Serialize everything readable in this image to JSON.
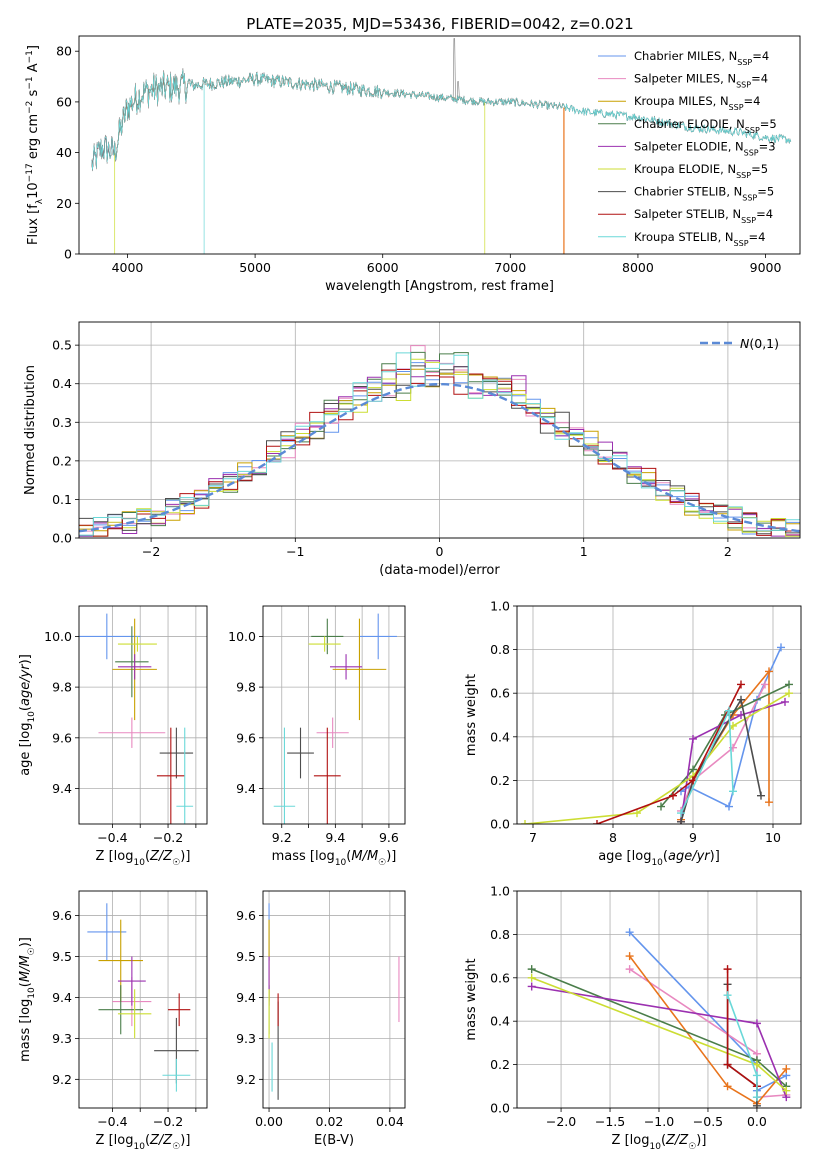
{
  "figure": {
    "title": "PLATE=2035, MJD=53436, FIBERID=0042, z=0.021"
  },
  "series_colors": {
    "Chabrier MILES": "#6495ed",
    "Salpeter MILES": "#e889c0",
    "Kroupa MILES": "#c8a000",
    "Chabrier ELODIE": "#4a7d4a",
    "Salpeter ELODIE": "#9b30b0",
    "Kroupa ELODIE": "#ccdd33",
    "Chabrier STELIB": "#4d4d4d",
    "Salpeter STELIB": "#b01010",
    "Kroupa STELIB": "#6ad8d8",
    "Salpeter STELIB (weights)": "#e8741c"
  },
  "chart_data": [
    {
      "type": "line",
      "name": "spectrum",
      "xlabel": "wavelength [Angstrom, rest frame]",
      "ylabel": "Flux [f_λ10^-17 erg cm^-2 s^-1 A^-1]",
      "xlim": [
        3620,
        9270
      ],
      "ylim": [
        0,
        86
      ],
      "xticks": [
        4000,
        5000,
        6000,
        7000,
        8000,
        9000
      ],
      "yticks": [
        0,
        20,
        40,
        60,
        80
      ],
      "grid": false,
      "legend_placement": "top-right",
      "legend": [
        {
          "model": "Chabrier MILES",
          "nssp": "4"
        },
        {
          "model": "Salpeter MILES",
          "nssp": "4"
        },
        {
          "model": "Kroupa MILES",
          "nssp": "4"
        },
        {
          "model": "Chabrier ELODIE",
          "nssp": "5"
        },
        {
          "model": "Salpeter ELODIE",
          "nssp": "3"
        },
        {
          "model": "Kroupa ELODIE",
          "nssp": "5"
        },
        {
          "model": "Chabrier STELIB",
          "nssp": "5"
        },
        {
          "model": "Salpeter STELIB",
          "nssp": "4"
        },
        {
          "model": "Kroupa STELIB",
          "nssp": "4"
        }
      ],
      "continuum": [
        [
          3720,
          35
        ],
        [
          3800,
          42
        ],
        [
          3900,
          40
        ],
        [
          3950,
          50
        ],
        [
          4000,
          58
        ],
        [
          4100,
          63
        ],
        [
          4200,
          65
        ],
        [
          4400,
          66
        ],
        [
          4600,
          67
        ],
        [
          4800,
          68
        ],
        [
          5000,
          69
        ],
        [
          5200,
          68
        ],
        [
          5400,
          67
        ],
        [
          5600,
          66
        ],
        [
          5800,
          65
        ],
        [
          6000,
          64
        ],
        [
          6200,
          63
        ],
        [
          6400,
          62
        ],
        [
          6600,
          61
        ],
        [
          6800,
          60
        ],
        [
          7000,
          60
        ],
        [
          7200,
          59
        ],
        [
          7400,
          58
        ],
        [
          7600,
          56
        ],
        [
          7800,
          55
        ],
        [
          8000,
          54
        ],
        [
          8200,
          52
        ],
        [
          8400,
          50
        ],
        [
          8600,
          49
        ],
        [
          8800,
          48
        ],
        [
          9000,
          46
        ],
        [
          9200,
          45
        ]
      ],
      "drops": [
        {
          "series": "Kroupa ELODIE",
          "x": 3900
        },
        {
          "series": "Kroupa STELIB",
          "x": 4600
        },
        {
          "series": "Kroupa ELODIE",
          "x": 6800
        },
        {
          "series": "Salpeter STELIB",
          "x": 7420
        }
      ],
      "emission_lines": [
        {
          "x": 6563,
          "y": 85
        },
        {
          "x": 6590,
          "y": 68
        }
      ]
    },
    {
      "type": "histogram",
      "name": "residuals",
      "xlabel": "(data-model)/error",
      "ylabel": "Normed distribution",
      "xlim": [
        -2.5,
        2.5
      ],
      "ylim": [
        0,
        0.56
      ],
      "xticks": [
        -2,
        -1,
        0,
        1,
        2
      ],
      "yticks": [
        0.0,
        0.1,
        0.2,
        0.3,
        0.4,
        0.5
      ],
      "grid": true,
      "legend_placement": "top-right",
      "reference_label": "N(0,1)",
      "bin_width": 0.1,
      "bin_start": -2.5
    },
    {
      "type": "scatter",
      "name": "age-vs-Z",
      "xlabel": "Z [log10(Z/Z☉)]",
      "ylabel": "age  [log10(age/yr)]",
      "xlim": [
        -0.52,
        -0.06
      ],
      "ylim": [
        9.26,
        10.12
      ],
      "xticks": [
        -0.4,
        -0.3,
        -0.2,
        -0.1
      ],
      "xticklabels": [
        "−0.4",
        "",
        "−0.2",
        ""
      ],
      "yticks": [
        9.4,
        9.6,
        9.8,
        10.0
      ],
      "grid": true,
      "points": [
        {
          "series": "Chabrier MILES",
          "x": -0.42,
          "xerr": 0.12,
          "y": 10.0,
          "yerr": 0.09
        },
        {
          "series": "Salpeter MILES",
          "x": -0.33,
          "xerr": 0.12,
          "y": 9.62,
          "yerr": 0.06
        },
        {
          "series": "Kroupa MILES",
          "x": -0.32,
          "xerr": 0.08,
          "y": 9.87,
          "yerr": 0.2
        },
        {
          "series": "Chabrier ELODIE",
          "x": -0.33,
          "xerr": 0.06,
          "y": 9.9,
          "yerr": 0.14
        },
        {
          "series": "Salpeter ELODIE",
          "x": -0.32,
          "xerr": 0.06,
          "y": 9.88,
          "yerr": 0.05
        },
        {
          "series": "Kroupa ELODIE",
          "x": -0.31,
          "xerr": 0.07,
          "y": 9.97,
          "yerr": 0.03
        },
        {
          "series": "Chabrier STELIB",
          "x": -0.17,
          "xerr": 0.06,
          "y": 9.54,
          "yerr": 0.1
        },
        {
          "series": "Salpeter STELIB",
          "x": -0.19,
          "xerr": 0.05,
          "y": 9.45,
          "yerr": 0.19
        },
        {
          "series": "Kroupa STELIB",
          "x": -0.14,
          "xerr": 0.03,
          "y": 9.33,
          "yerr": 0.31
        }
      ]
    },
    {
      "type": "scatter",
      "name": "age-vs-mass",
      "xlabel": "mass [log10(M/M☉)]",
      "ylabel": "",
      "xlim": [
        9.13,
        9.66
      ],
      "ylim": [
        9.26,
        10.12
      ],
      "xticks": [
        9.2,
        9.3,
        9.4,
        9.5,
        9.6
      ],
      "xticklabels": [
        "9.2",
        "",
        "9.4",
        "",
        "9.6"
      ],
      "yticks": [
        9.4,
        9.6,
        9.8,
        10.0
      ],
      "grid": true,
      "points": [
        {
          "series": "Chabrier MILES",
          "x": 9.56,
          "xerr": 0.07,
          "y": 10.0,
          "yerr": 0.09
        },
        {
          "series": "Salpeter MILES",
          "x": 9.39,
          "xerr": 0.06,
          "y": 9.62,
          "yerr": 0.06
        },
        {
          "series": "Kroupa MILES",
          "x": 9.49,
          "xerr": 0.1,
          "y": 9.87,
          "yerr": 0.2
        },
        {
          "series": "Chabrier ELODIE",
          "x": 9.37,
          "xerr": 0.06,
          "y": 10.0,
          "yerr": 0.07
        },
        {
          "series": "Salpeter ELODIE",
          "x": 9.44,
          "xerr": 0.06,
          "y": 9.88,
          "yerr": 0.05
        },
        {
          "series": "Kroupa ELODIE",
          "x": 9.36,
          "xerr": 0.06,
          "y": 9.97,
          "yerr": 0.03
        },
        {
          "series": "Chabrier STELIB",
          "x": 9.27,
          "xerr": 0.05,
          "y": 9.54,
          "yerr": 0.1
        },
        {
          "series": "Salpeter STELIB",
          "x": 9.37,
          "xerr": 0.05,
          "y": 9.45,
          "yerr": 0.19
        },
        {
          "series": "Kroupa STELIB",
          "x": 9.21,
          "xerr": 0.04,
          "y": 9.33,
          "yerr": 0.31
        }
      ]
    },
    {
      "type": "line",
      "name": "weight-vs-age",
      "xlabel": "age  [log10(age/yr)]",
      "ylabel": "mass weight",
      "xlim": [
        6.8,
        10.35
      ],
      "ylim": [
        0,
        1
      ],
      "xticks": [
        7,
        8,
        9,
        10
      ],
      "yticks": [
        0.0,
        0.2,
        0.4,
        0.6,
        0.8,
        1.0
      ],
      "grid": true,
      "series": [
        {
          "series": "Chabrier MILES",
          "points": [
            [
              8.85,
              0.15
            ],
            [
              8.95,
              0.17
            ],
            [
              9.45,
              0.08
            ],
            [
              9.8,
              0.57
            ],
            [
              10.1,
              0.81
            ]
          ]
        },
        {
          "series": "Salpeter MILES",
          "points": [
            [
              8.85,
              0.06
            ],
            [
              9.0,
              0.2
            ],
            [
              9.5,
              0.35
            ],
            [
              9.9,
              0.64
            ]
          ]
        },
        {
          "series": "Salpeter STELIB (weights)",
          "points": [
            [
              8.85,
              0.02
            ],
            [
              9.0,
              0.2
            ],
            [
              9.5,
              0.5
            ],
            [
              9.95,
              0.7
            ],
            [
              9.95,
              0.1
            ]
          ]
        },
        {
          "series": "Chabrier ELODIE",
          "points": [
            [
              8.6,
              0.08
            ],
            [
              9.0,
              0.25
            ],
            [
              9.4,
              0.5
            ],
            [
              10.2,
              0.64
            ]
          ]
        },
        {
          "series": "Salpeter ELODIE",
          "points": [
            [
              8.85,
              0.01
            ],
            [
              9.0,
              0.39
            ],
            [
              9.6,
              0.5
            ],
            [
              10.15,
              0.56
            ]
          ]
        },
        {
          "series": "Kroupa ELODIE",
          "points": [
            [
              6.9,
              0.0
            ],
            [
              8.3,
              0.05
            ],
            [
              9.0,
              0.22
            ],
            [
              9.5,
              0.45
            ],
            [
              10.2,
              0.6
            ]
          ]
        },
        {
          "series": "Chabrier STELIB",
          "points": [
            [
              8.85,
              0.01
            ],
            [
              9.0,
              0.2
            ],
            [
              9.6,
              0.57
            ],
            [
              9.85,
              0.13
            ]
          ]
        },
        {
          "series": "Salpeter STELIB",
          "points": [
            [
              7.8,
              0.0
            ],
            [
              8.75,
              0.13
            ],
            [
              9.0,
              0.2
            ],
            [
              9.6,
              0.64
            ]
          ]
        },
        {
          "series": "Kroupa STELIB",
          "points": [
            [
              8.85,
              0.05
            ],
            [
              9.45,
              0.52
            ],
            [
              9.5,
              0.15
            ]
          ]
        }
      ]
    },
    {
      "type": "scatter",
      "name": "mass-vs-Z",
      "xlabel": "Z [log10(Z/Z☉)]",
      "ylabel": "mass [log10(M/M☉)]",
      "xlim": [
        -0.52,
        -0.06
      ],
      "ylim": [
        9.13,
        9.66
      ],
      "xticks": [
        -0.4,
        -0.3,
        -0.2,
        -0.1
      ],
      "xticklabels": [
        "−0.4",
        "",
        "−0.2",
        ""
      ],
      "yticks": [
        9.2,
        9.3,
        9.4,
        9.5,
        9.6
      ],
      "grid": true,
      "points": [
        {
          "series": "Chabrier MILES",
          "x": -0.42,
          "xerr": 0.07,
          "y": 9.56,
          "yerr": 0.07
        },
        {
          "series": "Salpeter MILES",
          "x": -0.33,
          "xerr": 0.07,
          "y": 9.39,
          "yerr": 0.06
        },
        {
          "series": "Kroupa MILES",
          "x": -0.37,
          "xerr": 0.08,
          "y": 9.49,
          "yerr": 0.1
        },
        {
          "series": "Chabrier ELODIE",
          "x": -0.37,
          "xerr": 0.08,
          "y": 9.37,
          "yerr": 0.06
        },
        {
          "series": "Salpeter ELODIE",
          "x": -0.33,
          "xerr": 0.05,
          "y": 9.44,
          "yerr": 0.06
        },
        {
          "series": "Kroupa ELODIE",
          "x": -0.32,
          "xerr": 0.06,
          "y": 9.36,
          "yerr": 0.06
        },
        {
          "series": "Chabrier STELIB",
          "x": -0.17,
          "xerr": 0.08,
          "y": 9.27,
          "yerr": 0.08
        },
        {
          "series": "Salpeter STELIB",
          "x": -0.16,
          "xerr": 0.04,
          "y": 9.37,
          "yerr": 0.04
        },
        {
          "series": "Kroupa STELIB",
          "x": -0.17,
          "xerr": 0.05,
          "y": 9.21,
          "yerr": 0.04
        }
      ]
    },
    {
      "type": "scatter",
      "name": "mass-vs-EBV",
      "xlabel": "E(B-V)",
      "ylabel": "",
      "xlim": [
        -0.002,
        0.045
      ],
      "ylim": [
        9.13,
        9.66
      ],
      "xticks": [
        0.0,
        0.02,
        0.04
      ],
      "xticklabels": [
        "0.00",
        "0.02",
        "0.04"
      ],
      "yticks": [
        9.2,
        9.3,
        9.4,
        9.5,
        9.6
      ],
      "grid": true,
      "points": [
        {
          "series": "Chabrier MILES",
          "x": 0.0,
          "y": 9.56,
          "yerr": 0.07
        },
        {
          "series": "Salpeter MILES",
          "x": 0.043,
          "y": 9.42,
          "yerr": 0.08
        },
        {
          "series": "Kroupa MILES",
          "x": 0.0,
          "y": 9.49,
          "yerr": 0.1
        },
        {
          "series": "Chabrier ELODIE",
          "x": 0.0,
          "y": 9.37,
          "yerr": 0.06
        },
        {
          "series": "Salpeter ELODIE",
          "x": 0.0,
          "y": 9.44,
          "yerr": 0.06
        },
        {
          "series": "Kroupa ELODIE",
          "x": 0.0,
          "y": 9.36,
          "yerr": 0.06
        },
        {
          "series": "Chabrier STELIB",
          "x": 0.003,
          "y": 9.27,
          "yerr": 0.12
        },
        {
          "series": "Salpeter STELIB",
          "x": 0.003,
          "y": 9.37,
          "yerr": 0.04
        },
        {
          "series": "Kroupa STELIB",
          "x": 0.001,
          "y": 9.23,
          "yerr": 0.06
        }
      ]
    },
    {
      "type": "line",
      "name": "weight-vs-Z",
      "xlabel": "Z [log10(Z/Z☉)]",
      "ylabel": "mass weight",
      "xlim": [
        -2.45,
        0.45
      ],
      "ylim": [
        0,
        1
      ],
      "xticks": [
        -2.0,
        -1.5,
        -1.0,
        -0.5,
        0.0
      ],
      "xticklabels": [
        "−2.0",
        "−1.5",
        "−1.0",
        "−0.5",
        "0.0"
      ],
      "yticks": [
        0.0,
        0.2,
        0.4,
        0.6,
        0.8,
        1.0
      ],
      "grid": true,
      "series": [
        {
          "series": "Chabrier MILES",
          "points": [
            [
              -1.3,
              0.81
            ],
            [
              0.0,
              0.2
            ],
            [
              0.0,
              0.08
            ],
            [
              0.3,
              0.15
            ]
          ]
        },
        {
          "series": "Salpeter MILES",
          "points": [
            [
              -1.3,
              0.64
            ],
            [
              0.0,
              0.25
            ],
            [
              0.0,
              0.05
            ],
            [
              0.3,
              0.06
            ]
          ]
        },
        {
          "series": "Salpeter STELIB (weights)",
          "points": [
            [
              -1.3,
              0.7
            ],
            [
              -0.3,
              0.1
            ],
            [
              0.0,
              0.02
            ],
            [
              0.3,
              0.18
            ]
          ]
        },
        {
          "series": "Chabrier ELODIE",
          "points": [
            [
              -2.3,
              0.64
            ],
            [
              0.0,
              0.22
            ],
            [
              0.3,
              0.1
            ]
          ]
        },
        {
          "series": "Salpeter ELODIE",
          "points": [
            [
              -2.3,
              0.56
            ],
            [
              0.0,
              0.39
            ],
            [
              0.3,
              0.05
            ]
          ]
        },
        {
          "series": "Kroupa ELODIE",
          "points": [
            [
              -2.3,
              0.6
            ],
            [
              0.0,
              0.2
            ],
            [
              0.3,
              0.08
            ]
          ]
        },
        {
          "series": "Chabrier STELIB",
          "points": [
            [
              -0.3,
              0.57
            ],
            [
              -0.3,
              0.2
            ],
            [
              0.0,
              0.1
            ],
            [
              0.0,
              0.01
            ]
          ]
        },
        {
          "series": "Salpeter STELIB",
          "points": [
            [
              -0.3,
              0.64
            ],
            [
              -0.3,
              0.2
            ],
            [
              0.0,
              0.1
            ]
          ]
        },
        {
          "series": "Kroupa STELIB",
          "points": [
            [
              -0.3,
              0.52
            ],
            [
              0.0,
              0.15
            ],
            [
              0.0,
              0.05
            ]
          ]
        }
      ]
    }
  ]
}
